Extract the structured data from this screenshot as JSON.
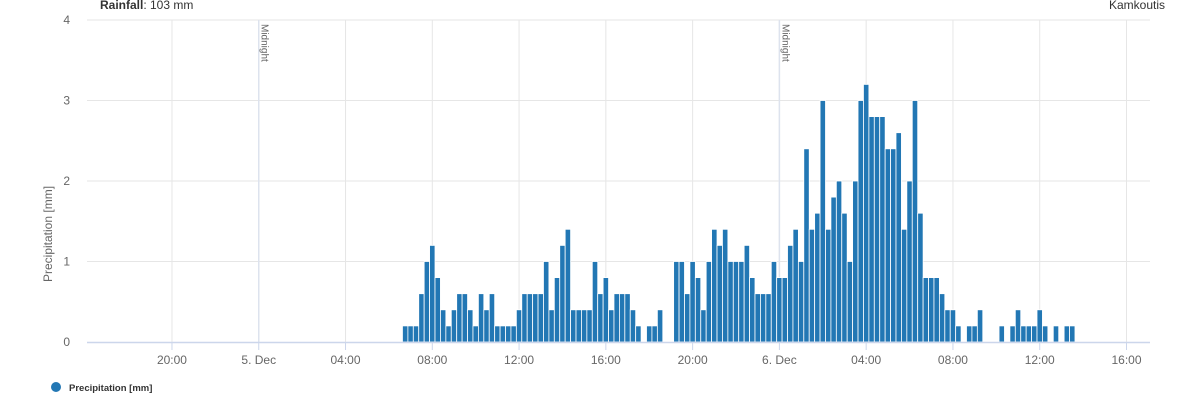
{
  "header": {
    "rainfall_label": "Rainfall",
    "rainfall_value": ": 103 mm",
    "station": "Kamkoutis"
  },
  "colors": {
    "bar": "#2277b4",
    "grid": "#e6e6e6",
    "axis": "#ccd6eb",
    "plotline": "#dde3ee"
  },
  "chart_data": {
    "type": "bar",
    "title": "",
    "xlabel": "",
    "ylabel": "Precipitation [mm]",
    "ylim": [
      0,
      4
    ],
    "yticks": [
      "0",
      "1",
      "2",
      "3",
      "4"
    ],
    "xlim": [
      "4 Dec 16:05",
      "6 Dec 17:05"
    ],
    "xtick_labels": [
      "20:00",
      "5. Dec",
      "04:00",
      "08:00",
      "12:00",
      "16:00",
      "20:00",
      "6. Dec",
      "04:00",
      "08:00",
      "12:00",
      "16:00"
    ],
    "grid": true,
    "legend": {
      "position": "bottom-left",
      "entries": [
        "Precipitation [mm]"
      ]
    },
    "plot_lines": [
      {
        "x": "5 Dec 00:00",
        "label": "Midnight"
      },
      {
        "x": "6 Dec 00:00",
        "label": "Midnight"
      }
    ],
    "series": [
      {
        "name": "Precipitation [mm]",
        "x": [
          "5 Dec 06:45",
          "5 Dec 07:00",
          "5 Dec 07:15",
          "5 Dec 07:30",
          "5 Dec 07:45",
          "5 Dec 08:00",
          "5 Dec 08:15",
          "5 Dec 08:30",
          "5 Dec 08:45",
          "5 Dec 09:00",
          "5 Dec 09:15",
          "5 Dec 09:30",
          "5 Dec 09:45",
          "5 Dec 10:00",
          "5 Dec 10:15",
          "5 Dec 10:30",
          "5 Dec 10:45",
          "5 Dec 11:00",
          "5 Dec 11:15",
          "5 Dec 11:30",
          "5 Dec 11:45",
          "5 Dec 12:00",
          "5 Dec 12:15",
          "5 Dec 12:30",
          "5 Dec 12:45",
          "5 Dec 13:00",
          "5 Dec 13:15",
          "5 Dec 13:30",
          "5 Dec 13:45",
          "5 Dec 14:00",
          "5 Dec 14:15",
          "5 Dec 14:30",
          "5 Dec 14:45",
          "5 Dec 15:00",
          "5 Dec 15:15",
          "5 Dec 15:30",
          "5 Dec 15:45",
          "5 Dec 16:00",
          "5 Dec 16:15",
          "5 Dec 16:30",
          "5 Dec 16:45",
          "5 Dec 17:00",
          "5 Dec 17:15",
          "5 Dec 17:30",
          "5 Dec 17:45",
          "5 Dec 18:00",
          "5 Dec 18:15",
          "5 Dec 18:30",
          "5 Dec 18:45",
          "5 Dec 19:00",
          "5 Dec 19:15",
          "5 Dec 19:30",
          "5 Dec 19:45",
          "5 Dec 20:00",
          "5 Dec 20:15",
          "5 Dec 20:30",
          "5 Dec 20:45",
          "5 Dec 21:00",
          "5 Dec 21:15",
          "5 Dec 21:30",
          "5 Dec 21:45",
          "5 Dec 22:00",
          "5 Dec 22:15",
          "5 Dec 22:30",
          "5 Dec 22:45",
          "5 Dec 23:00",
          "5 Dec 23:15",
          "5 Dec 23:30",
          "5 Dec 23:45",
          "6 Dec 00:00",
          "6 Dec 00:15",
          "6 Dec 00:30",
          "6 Dec 00:45",
          "6 Dec 01:00",
          "6 Dec 01:15",
          "6 Dec 01:30",
          "6 Dec 01:45",
          "6 Dec 02:00",
          "6 Dec 02:15",
          "6 Dec 02:30",
          "6 Dec 02:45",
          "6 Dec 03:00",
          "6 Dec 03:15",
          "6 Dec 03:30",
          "6 Dec 03:45",
          "6 Dec 04:00",
          "6 Dec 04:15",
          "6 Dec 04:30",
          "6 Dec 04:45",
          "6 Dec 05:00",
          "6 Dec 05:15",
          "6 Dec 05:30",
          "6 Dec 05:45",
          "6 Dec 06:00",
          "6 Dec 06:15",
          "6 Dec 06:30",
          "6 Dec 06:45",
          "6 Dec 07:00",
          "6 Dec 07:15",
          "6 Dec 07:30",
          "6 Dec 07:45",
          "6 Dec 08:00",
          "6 Dec 08:15",
          "6 Dec 08:30",
          "6 Dec 08:45",
          "6 Dec 09:00",
          "6 Dec 09:15",
          "6 Dec 09:30",
          "6 Dec 09:45",
          "6 Dec 10:00",
          "6 Dec 10:15",
          "6 Dec 10:30",
          "6 Dec 10:45",
          "6 Dec 11:00",
          "6 Dec 11:15",
          "6 Dec 11:30",
          "6 Dec 11:45",
          "6 Dec 12:00",
          "6 Dec 12:15",
          "6 Dec 12:30",
          "6 Dec 12:45",
          "6 Dec 13:00",
          "6 Dec 13:15",
          "6 Dec 13:30"
        ],
        "values": [
          0.2,
          0.2,
          0.2,
          0.6,
          1.0,
          1.2,
          0.8,
          0.4,
          0.2,
          0.4,
          0.6,
          0.6,
          0.4,
          0.2,
          0.6,
          0.4,
          0.6,
          0.2,
          0.2,
          0.2,
          0.2,
          0.4,
          0.6,
          0.6,
          0.6,
          0.6,
          1.0,
          0.4,
          0.8,
          1.2,
          1.4,
          0.4,
          0.4,
          0.4,
          0.4,
          1.0,
          0.6,
          0.8,
          0.4,
          0.6,
          0.6,
          0.6,
          0.4,
          0.2,
          0,
          0.2,
          0.2,
          0.4,
          0,
          0,
          1.0,
          1.0,
          0.6,
          1.0,
          0.8,
          0.4,
          1.0,
          1.4,
          1.2,
          1.4,
          1.0,
          1.0,
          1.0,
          1.2,
          0.8,
          0.6,
          0.6,
          0.6,
          1.0,
          0.8,
          0.8,
          1.2,
          1.4,
          1.0,
          2.4,
          1.4,
          1.6,
          3.0,
          1.4,
          1.8,
          2.0,
          1.6,
          1.0,
          2.0,
          3.0,
          3.2,
          2.8,
          2.8,
          2.8,
          2.4,
          2.4,
          2.6,
          1.4,
          2.0,
          3.0,
          1.6,
          0.8,
          0.8,
          0.8,
          0.6,
          0.4,
          0.4,
          0.2,
          0,
          0.2,
          0.2,
          0.4,
          0,
          0,
          0,
          0.2,
          0,
          0.2,
          0.4,
          0.2,
          0.2,
          0.2,
          0.4,
          0.2,
          0,
          0.2,
          0,
          0.2,
          0.2
        ]
      }
    ]
  }
}
